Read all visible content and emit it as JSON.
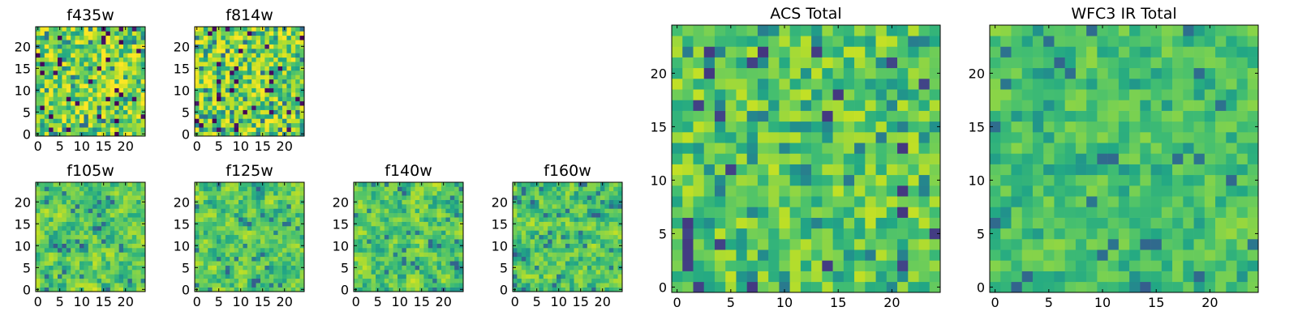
{
  "chart_data": [
    {
      "type": "heatmap",
      "title": "f435w",
      "xticks": [
        "0",
        "5",
        "10",
        "15",
        "20"
      ],
      "yticks": [
        "0",
        "5",
        "10",
        "15",
        "20"
      ],
      "grid": 25,
      "xlim": [
        -0.5,
        24.5
      ],
      "ylim": [
        -0.5,
        24.5
      ],
      "colormap": "viridis",
      "pattern_seed": 11,
      "pattern_contrast": 0.95,
      "pattern_smooth": 0.0
    },
    {
      "type": "heatmap",
      "title": "f814w",
      "xticks": [
        "0",
        "5",
        "10",
        "15",
        "20"
      ],
      "yticks": [
        "0",
        "5",
        "10",
        "15",
        "20"
      ],
      "grid": 25,
      "xlim": [
        -0.5,
        24.5
      ],
      "ylim": [
        -0.5,
        24.5
      ],
      "colormap": "viridis",
      "pattern_seed": 23,
      "pattern_contrast": 0.95,
      "pattern_smooth": 0.0
    },
    {
      "type": "heatmap",
      "title": "f105w",
      "xticks": [
        "0",
        "5",
        "10",
        "15",
        "20"
      ],
      "yticks": [
        "0",
        "5",
        "10",
        "15",
        "20"
      ],
      "grid": 25,
      "xlim": [
        -0.5,
        24.5
      ],
      "ylim": [
        -0.5,
        24.5
      ],
      "colormap": "viridis",
      "pattern_seed": 37,
      "pattern_contrast": 0.85,
      "pattern_smooth": 0.5
    },
    {
      "type": "heatmap",
      "title": "f125w",
      "xticks": [
        "0",
        "5",
        "10",
        "15",
        "20"
      ],
      "yticks": [
        "0",
        "5",
        "10",
        "15",
        "20"
      ],
      "grid": 25,
      "xlim": [
        -0.5,
        24.5
      ],
      "ylim": [
        -0.5,
        24.5
      ],
      "colormap": "viridis",
      "pattern_seed": 41,
      "pattern_contrast": 0.85,
      "pattern_smooth": 0.5
    },
    {
      "type": "heatmap",
      "title": "f140w",
      "xticks": [
        "0",
        "5",
        "10",
        "15",
        "20"
      ],
      "yticks": [
        "0",
        "5",
        "10",
        "15",
        "20"
      ],
      "grid": 25,
      "xlim": [
        -0.5,
        24.5
      ],
      "ylim": [
        -0.5,
        24.5
      ],
      "colormap": "viridis",
      "pattern_seed": 53,
      "pattern_contrast": 0.85,
      "pattern_smooth": 0.5
    },
    {
      "type": "heatmap",
      "title": "f160w",
      "xticks": [
        "0",
        "5",
        "10",
        "15",
        "20"
      ],
      "yticks": [
        "0",
        "5",
        "10",
        "15",
        "20"
      ],
      "grid": 25,
      "xlim": [
        -0.5,
        24.5
      ],
      "ylim": [
        -0.5,
        24.5
      ],
      "colormap": "viridis",
      "pattern_seed": 67,
      "pattern_contrast": 0.85,
      "pattern_smooth": 0.5
    },
    {
      "type": "heatmap",
      "title": "ACS Total",
      "xticks": [
        "0",
        "5",
        "10",
        "15",
        "20"
      ],
      "yticks": [
        "0",
        "5",
        "10",
        "15",
        "20"
      ],
      "grid": 25,
      "xlim": [
        -0.5,
        24.5
      ],
      "ylim": [
        -0.5,
        24.5
      ],
      "colormap": "viridis",
      "pattern_seed": 79,
      "pattern_contrast": 0.7,
      "pattern_smooth": 0.0
    },
    {
      "type": "heatmap",
      "title": "WFC3 IR Total",
      "xticks": [
        "0",
        "5",
        "10",
        "15",
        "20"
      ],
      "yticks": [
        "0",
        "5",
        "10",
        "15",
        "20"
      ],
      "grid": 25,
      "xlim": [
        -0.5,
        24.5
      ],
      "ylim": [
        -0.5,
        24.5
      ],
      "colormap": "viridis",
      "pattern_seed": 97,
      "pattern_contrast": 0.6,
      "pattern_smooth": 0.3
    }
  ]
}
